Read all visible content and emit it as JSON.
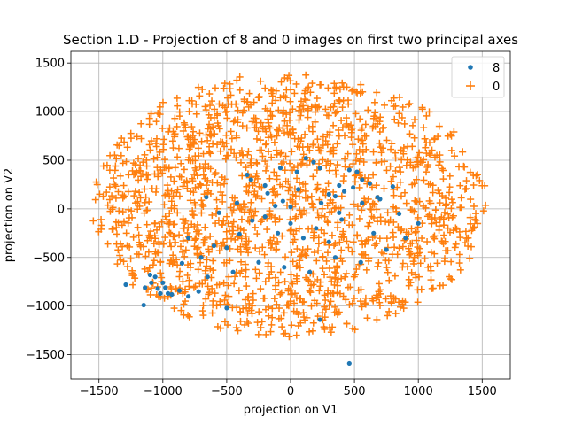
{
  "chart_data": {
    "type": "scatter",
    "title": "Section 1.D - Projection of 8 and 0 images on first two principal axes",
    "xlabel": "projection on V1",
    "ylabel": "projection on V2",
    "xlim": [
      -1720,
      1720
    ],
    "ylim": [
      -1750,
      1620
    ],
    "xticks": [
      -1500,
      -1000,
      -500,
      0,
      500,
      1000,
      1500
    ],
    "yticks": [
      -1500,
      -1000,
      -500,
      0,
      500,
      1000,
      1500
    ],
    "grid": true,
    "legend_position": "upper right",
    "series": [
      {
        "name": "8",
        "marker": "dot",
        "color": "#1f77b4",
        "points": [
          [
            -1290,
            -780
          ],
          [
            -1150,
            -990
          ],
          [
            -1140,
            -810
          ],
          [
            -1100,
            -680
          ],
          [
            -1090,
            -760
          ],
          [
            -1060,
            -700
          ],
          [
            -1000,
            -760
          ],
          [
            -960,
            -870
          ],
          [
            -930,
            -880
          ],
          [
            -1020,
            -870
          ],
          [
            -980,
            -810
          ],
          [
            -1040,
            -820
          ],
          [
            -870,
            -840
          ],
          [
            -500,
            -1020
          ],
          [
            -800,
            -900
          ],
          [
            -720,
            -850
          ],
          [
            460,
            -1590
          ],
          [
            230,
            -1140
          ],
          [
            -340,
            350
          ],
          [
            -310,
            300
          ],
          [
            -200,
            240
          ],
          [
            -120,
            30
          ],
          [
            -60,
            80
          ],
          [
            0,
            20
          ],
          [
            60,
            200
          ],
          [
            120,
            520
          ],
          [
            180,
            480
          ],
          [
            230,
            420
          ],
          [
            300,
            150
          ],
          [
            350,
            130
          ],
          [
            380,
            240
          ],
          [
            420,
            180
          ],
          [
            460,
            400
          ],
          [
            490,
            220
          ],
          [
            520,
            380
          ],
          [
            560,
            300
          ],
          [
            620,
            260
          ],
          [
            680,
            120
          ],
          [
            400,
            -110
          ],
          [
            300,
            -340
          ],
          [
            200,
            -200
          ],
          [
            100,
            -300
          ],
          [
            0,
            -150
          ],
          [
            -100,
            -250
          ],
          [
            -200,
            -80
          ],
          [
            -300,
            -120
          ],
          [
            -400,
            -260
          ],
          [
            -500,
            -400
          ],
          [
            -600,
            -380
          ],
          [
            -700,
            -500
          ],
          [
            -800,
            -300
          ],
          [
            -850,
            -560
          ],
          [
            -650,
            -700
          ],
          [
            -450,
            -650
          ],
          [
            -250,
            -550
          ],
          [
            -50,
            -600
          ],
          [
            150,
            -650
          ],
          [
            350,
            -500
          ],
          [
            550,
            -550
          ],
          [
            750,
            -420
          ],
          [
            900,
            -300
          ],
          [
            1000,
            -150
          ],
          [
            850,
            -50
          ],
          [
            700,
            100
          ],
          [
            650,
            -250
          ],
          [
            50,
            380
          ],
          [
            -80,
            420
          ],
          [
            -180,
            160
          ],
          [
            240,
            60
          ],
          [
            380,
            -40
          ],
          [
            560,
            60
          ],
          [
            800,
            230
          ],
          [
            -420,
            60
          ],
          [
            -560,
            -40
          ],
          [
            -660,
            120
          ]
        ]
      },
      {
        "name": "0",
        "marker": "plus",
        "color": "#ff7f0e",
        "cloud": {
          "center": [
            0,
            0
          ],
          "x_half_range": [
            -1560,
            1540
          ],
          "y_half_range": [
            -1320,
            1410
          ],
          "count": 1700,
          "seed": 4
        }
      }
    ]
  }
}
